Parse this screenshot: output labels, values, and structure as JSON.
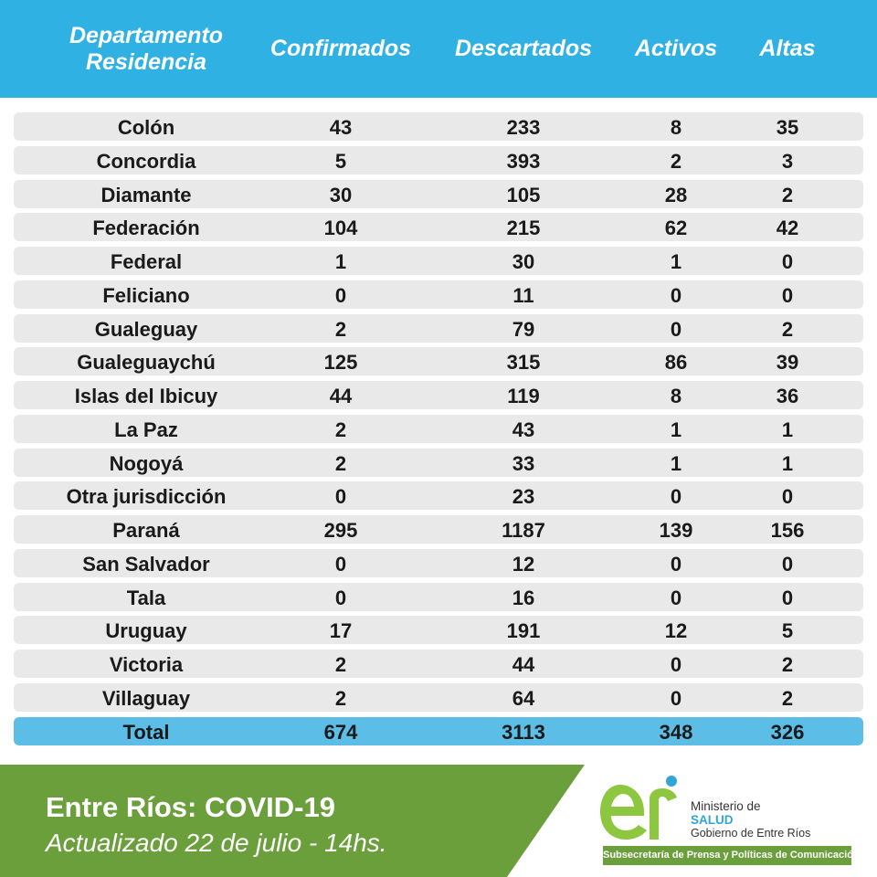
{
  "header": {
    "departamento": "Departamento\nResidencia",
    "confirmados": "Confirmados",
    "descartados": "Descartados",
    "activos": "Activos",
    "altas": "Altas"
  },
  "rows": [
    {
      "departamento": "Colón",
      "confirmados": "43",
      "descartados": "233",
      "activos": "8",
      "altas": "35"
    },
    {
      "departamento": "Concordia",
      "confirmados": "5",
      "descartados": "393",
      "activos": "2",
      "altas": "3"
    },
    {
      "departamento": "Diamante",
      "confirmados": "30",
      "descartados": "105",
      "activos": "28",
      "altas": "2"
    },
    {
      "departamento": "Federación",
      "confirmados": "104",
      "descartados": "215",
      "activos": "62",
      "altas": "42"
    },
    {
      "departamento": "Federal",
      "confirmados": "1",
      "descartados": "30",
      "activos": "1",
      "altas": "0"
    },
    {
      "departamento": "Feliciano",
      "confirmados": "0",
      "descartados": "11",
      "activos": "0",
      "altas": "0"
    },
    {
      "departamento": "Gualeguay",
      "confirmados": "2",
      "descartados": "79",
      "activos": "0",
      "altas": "2"
    },
    {
      "departamento": "Gualeguaychú",
      "confirmados": "125",
      "descartados": "315",
      "activos": "86",
      "altas": "39"
    },
    {
      "departamento": "Islas del Ibicuy",
      "confirmados": "44",
      "descartados": "119",
      "activos": "8",
      "altas": "36"
    },
    {
      "departamento": "La Paz",
      "confirmados": "2",
      "descartados": "43",
      "activos": "1",
      "altas": "1"
    },
    {
      "departamento": "Nogoyá",
      "confirmados": "2",
      "descartados": "33",
      "activos": "1",
      "altas": "1"
    },
    {
      "departamento": "Otra jurisdicción",
      "confirmados": "0",
      "descartados": "23",
      "activos": "0",
      "altas": "0"
    },
    {
      "departamento": "Paraná",
      "confirmados": "295",
      "descartados": "1187",
      "activos": "139",
      "altas": "156"
    },
    {
      "departamento": "San Salvador",
      "confirmados": "0",
      "descartados": "12",
      "activos": "0",
      "altas": "0"
    },
    {
      "departamento": "Tala",
      "confirmados": "0",
      "descartados": "16",
      "activos": "0",
      "altas": "0"
    },
    {
      "departamento": "Uruguay",
      "confirmados": "17",
      "descartados": "191",
      "activos": "12",
      "altas": "5"
    },
    {
      "departamento": "Victoria",
      "confirmados": "2",
      "descartados": "44",
      "activos": "0",
      "altas": "2"
    },
    {
      "departamento": "Villaguay",
      "confirmados": "2",
      "descartados": "64",
      "activos": "0",
      "altas": "2"
    }
  ],
  "total": {
    "departamento": "Total",
    "confirmados": "674",
    "descartados": "3113",
    "activos": "348",
    "altas": "326"
  },
  "footer": {
    "title": "Entre Ríos: COVID-19",
    "subtitle": "Actualizado 22 de julio - 14hs.",
    "ministerio_line1": "Ministerio de",
    "ministerio_line2": "SALUD",
    "ministerio_line3": "Gobierno de Entre Ríos",
    "subsecretaria": "Subsecretaría de Prensa y Políticas de Comunicación"
  },
  "colors": {
    "header_blue": "#2fb1e4",
    "row_gray": "#e9e9e9",
    "total_blue": "#5cbde7",
    "footer_green": "#6a9f3b",
    "logo_green": "#8dc63f"
  },
  "icons": [
    "er-logo-icon"
  ]
}
